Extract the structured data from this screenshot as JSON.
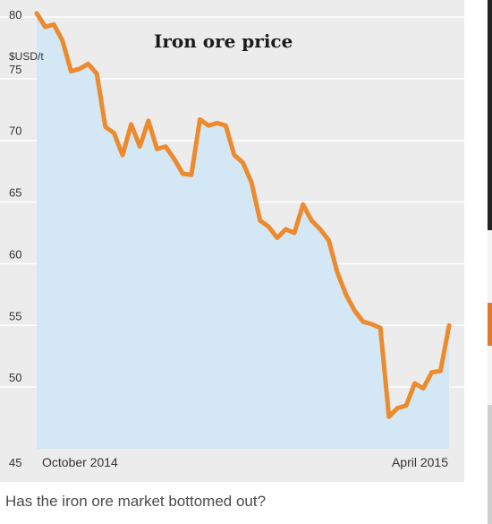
{
  "chart_data": {
    "type": "area",
    "title": "Iron ore price",
    "ylabel": "$USD/t",
    "x_start_label": "October 2014",
    "x_end_label": "April 2015",
    "ylim": [
      45,
      80
    ],
    "yticks": [
      45,
      50,
      55,
      60,
      65,
      70,
      75,
      80
    ],
    "grid": true,
    "colors": {
      "line": "#ed8a2d",
      "fill": "#d3e8f4",
      "background": "#ececec",
      "grid": "#ffffff"
    },
    "series": [
      {
        "values": [
          80.3,
          79.2,
          79.4,
          78.1,
          75.6,
          75.8,
          76.2,
          75.4,
          71.1,
          70.6,
          68.8,
          71.3,
          69.5,
          71.6,
          69.3,
          69.5,
          68.5,
          67.3,
          67.2,
          71.7,
          71.2,
          71.4,
          71.2,
          68.8,
          68.2,
          66.6,
          63.5,
          63.0,
          62.1,
          62.8,
          62.5,
          64.8,
          63.5,
          62.8,
          61.9,
          59.3,
          57.5,
          56.2,
          55.3,
          55.1,
          54.8,
          47.6,
          48.3,
          48.5,
          50.3,
          49.9,
          51.2,
          51.3,
          55.0
        ]
      }
    ]
  },
  "caption": "Has the iron ore market bottomed out?"
}
